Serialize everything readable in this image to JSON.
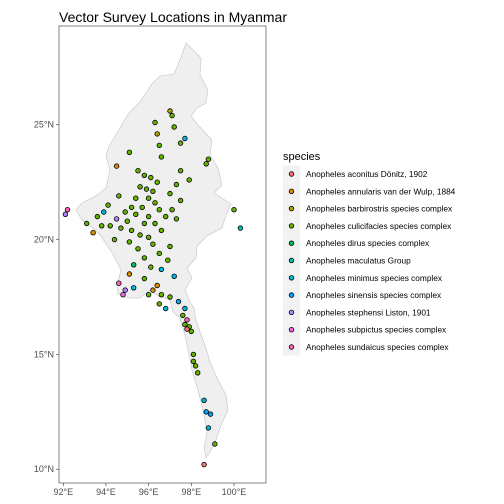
{
  "chart_data": {
    "type": "scatter",
    "title": "Vector Survey Locations in Myanmar",
    "x_ticks": [
      "92°E",
      "94°E",
      "96°E",
      "98°E",
      "100°E"
    ],
    "x_tick_values": [
      92,
      94,
      96,
      98,
      100
    ],
    "y_ticks": [
      "10°N",
      "15°N",
      "20°N",
      "25°N"
    ],
    "y_tick_values": [
      10,
      15,
      20,
      25
    ],
    "xlim": [
      91.8,
      101.5
    ],
    "ylim": [
      9.4,
      29.3
    ],
    "grid": false,
    "legend_placement": "right",
    "legend": {
      "title": "species",
      "entries": [
        {
          "label": "Anopheles aconitus Dönitz, 1902",
          "color": "#F8766D"
        },
        {
          "label": "Anopheles annularis van der Wulp, 1884",
          "color": "#DB8E00"
        },
        {
          "label": "Anopheles barbirostris species complex",
          "color": "#AEA200"
        },
        {
          "label": "Anopheles culicifacies species complex",
          "color": "#64B200"
        },
        {
          "label": "Anopheles dirus species complex",
          "color": "#00BD5C"
        },
        {
          "label": "Anopheles maculatus Group",
          "color": "#00C1A7"
        },
        {
          "label": "Anopheles minimus species complex",
          "color": "#00BADE"
        },
        {
          "label": "Anopheles sinensis species complex",
          "color": "#00A6FF"
        },
        {
          "label": "Anopheles stephensi Liston, 1901",
          "color": "#B385FF"
        },
        {
          "label": "Anopheles subpictus species complex",
          "color": "#EF67EB"
        },
        {
          "label": "Anopheles sundaicus species complex",
          "color": "#FF63B6"
        }
      ]
    },
    "points": [
      {
        "lon": 97.0,
        "lat": 25.6,
        "s": 2
      },
      {
        "lon": 97.1,
        "lat": 25.4,
        "s": 3
      },
      {
        "lon": 96.3,
        "lat": 25.1,
        "s": 3
      },
      {
        "lon": 97.2,
        "lat": 24.9,
        "s": 3
      },
      {
        "lon": 96.4,
        "lat": 24.6,
        "s": 2
      },
      {
        "lon": 97.7,
        "lat": 24.4,
        "s": 6
      },
      {
        "lon": 97.5,
        "lat": 24.2,
        "s": 3
      },
      {
        "lon": 96.5,
        "lat": 24.1,
        "s": 3
      },
      {
        "lon": 95.1,
        "lat": 23.8,
        "s": 3
      },
      {
        "lon": 96.6,
        "lat": 23.6,
        "s": 3
      },
      {
        "lon": 94.5,
        "lat": 23.2,
        "s": 1
      },
      {
        "lon": 98.8,
        "lat": 23.5,
        "s": 3
      },
      {
        "lon": 98.7,
        "lat": 23.3,
        "s": 3
      },
      {
        "lon": 95.5,
        "lat": 23.0,
        "s": 3
      },
      {
        "lon": 97.5,
        "lat": 23.0,
        "s": 3
      },
      {
        "lon": 95.8,
        "lat": 22.8,
        "s": 3
      },
      {
        "lon": 96.1,
        "lat": 22.7,
        "s": 3
      },
      {
        "lon": 97.9,
        "lat": 22.6,
        "s": 3
      },
      {
        "lon": 96.4,
        "lat": 22.5,
        "s": 3
      },
      {
        "lon": 97.3,
        "lat": 22.4,
        "s": 3
      },
      {
        "lon": 95.6,
        "lat": 22.3,
        "s": 3
      },
      {
        "lon": 95.9,
        "lat": 22.2,
        "s": 3
      },
      {
        "lon": 96.2,
        "lat": 22.1,
        "s": 3
      },
      {
        "lon": 97.0,
        "lat": 22.0,
        "s": 3
      },
      {
        "lon": 94.6,
        "lat": 21.9,
        "s": 3
      },
      {
        "lon": 95.4,
        "lat": 21.8,
        "s": 3
      },
      {
        "lon": 96.0,
        "lat": 21.8,
        "s": 3
      },
      {
        "lon": 96.3,
        "lat": 21.6,
        "s": 3
      },
      {
        "lon": 97.5,
        "lat": 21.7,
        "s": 3
      },
      {
        "lon": 94.1,
        "lat": 21.5,
        "s": 3
      },
      {
        "lon": 95.2,
        "lat": 21.4,
        "s": 3
      },
      {
        "lon": 95.7,
        "lat": 21.4,
        "s": 3
      },
      {
        "lon": 96.5,
        "lat": 21.3,
        "s": 3
      },
      {
        "lon": 97.1,
        "lat": 21.3,
        "s": 3
      },
      {
        "lon": 93.9,
        "lat": 21.2,
        "s": 6
      },
      {
        "lon": 94.9,
        "lat": 21.2,
        "s": 3
      },
      {
        "lon": 95.4,
        "lat": 21.1,
        "s": 3
      },
      {
        "lon": 96.0,
        "lat": 21.0,
        "s": 3
      },
      {
        "lon": 96.8,
        "lat": 21.0,
        "s": 3
      },
      {
        "lon": 97.3,
        "lat": 20.9,
        "s": 3
      },
      {
        "lon": 94.5,
        "lat": 20.9,
        "s": 8
      },
      {
        "lon": 95.0,
        "lat": 20.8,
        "s": 3
      },
      {
        "lon": 95.8,
        "lat": 20.7,
        "s": 3
      },
      {
        "lon": 96.3,
        "lat": 20.7,
        "s": 3
      },
      {
        "lon": 94.2,
        "lat": 20.6,
        "s": 3
      },
      {
        "lon": 94.7,
        "lat": 20.5,
        "s": 3
      },
      {
        "lon": 95.2,
        "lat": 20.4,
        "s": 3
      },
      {
        "lon": 96.6,
        "lat": 20.4,
        "s": 3
      },
      {
        "lon": 95.6,
        "lat": 20.2,
        "s": 3
      },
      {
        "lon": 96.0,
        "lat": 20.1,
        "s": 3
      },
      {
        "lon": 94.4,
        "lat": 20.0,
        "s": 3
      },
      {
        "lon": 95.1,
        "lat": 19.9,
        "s": 3
      },
      {
        "lon": 96.2,
        "lat": 19.8,
        "s": 3
      },
      {
        "lon": 97.0,
        "lat": 19.7,
        "s": 3
      },
      {
        "lon": 95.5,
        "lat": 19.6,
        "s": 3
      },
      {
        "lon": 96.5,
        "lat": 19.4,
        "s": 3
      },
      {
        "lon": 95.8,
        "lat": 19.2,
        "s": 3
      },
      {
        "lon": 96.9,
        "lat": 19.1,
        "s": 3
      },
      {
        "lon": 95.3,
        "lat": 18.9,
        "s": 4
      },
      {
        "lon": 96.1,
        "lat": 18.8,
        "s": 3
      },
      {
        "lon": 96.6,
        "lat": 18.7,
        "s": 6
      },
      {
        "lon": 97.2,
        "lat": 18.4,
        "s": 6
      },
      {
        "lon": 95.8,
        "lat": 18.3,
        "s": 3
      },
      {
        "lon": 96.4,
        "lat": 18.0,
        "s": 1
      },
      {
        "lon": 96.2,
        "lat": 17.8,
        "s": 1
      },
      {
        "lon": 96.0,
        "lat": 17.6,
        "s": 3
      },
      {
        "lon": 96.6,
        "lat": 17.6,
        "s": 3
      },
      {
        "lon": 97.0,
        "lat": 17.5,
        "s": 3
      },
      {
        "lon": 97.4,
        "lat": 17.3,
        "s": 7
      },
      {
        "lon": 96.5,
        "lat": 17.2,
        "s": 3
      },
      {
        "lon": 96.8,
        "lat": 17.0,
        "s": 6
      },
      {
        "lon": 97.7,
        "lat": 17.0,
        "s": 6
      },
      {
        "lon": 97.6,
        "lat": 16.7,
        "s": 3
      },
      {
        "lon": 97.8,
        "lat": 16.5,
        "s": 10
      },
      {
        "lon": 97.7,
        "lat": 16.3,
        "s": 3
      },
      {
        "lon": 97.9,
        "lat": 16.2,
        "s": 3
      },
      {
        "lon": 98.0,
        "lat": 16.0,
        "s": 3
      },
      {
        "lon": 97.8,
        "lat": 16.1,
        "s": 0
      },
      {
        "lon": 98.1,
        "lat": 15.0,
        "s": 3
      },
      {
        "lon": 98.1,
        "lat": 14.7,
        "s": 3
      },
      {
        "lon": 98.2,
        "lat": 14.5,
        "s": 3
      },
      {
        "lon": 98.3,
        "lat": 14.2,
        "s": 3
      },
      {
        "lon": 98.6,
        "lat": 13.0,
        "s": 6
      },
      {
        "lon": 98.7,
        "lat": 12.5,
        "s": 7
      },
      {
        "lon": 98.9,
        "lat": 12.4,
        "s": 7
      },
      {
        "lon": 98.8,
        "lat": 11.8,
        "s": 6
      },
      {
        "lon": 99.1,
        "lat": 11.1,
        "s": 3
      },
      {
        "lon": 98.6,
        "lat": 10.2,
        "s": 0
      },
      {
        "lon": 92.2,
        "lat": 21.3,
        "s": 10
      },
      {
        "lon": 92.1,
        "lat": 21.1,
        "s": 8
      },
      {
        "lon": 93.1,
        "lat": 20.7,
        "s": 3
      },
      {
        "lon": 93.4,
        "lat": 20.3,
        "s": 1
      },
      {
        "lon": 93.6,
        "lat": 21.0,
        "s": 3
      },
      {
        "lon": 93.8,
        "lat": 20.6,
        "s": 3
      },
      {
        "lon": 94.6,
        "lat": 18.1,
        "s": 10
      },
      {
        "lon": 94.9,
        "lat": 17.8,
        "s": 8
      },
      {
        "lon": 94.8,
        "lat": 17.6,
        "s": 9
      },
      {
        "lon": 95.3,
        "lat": 17.9,
        "s": 6
      },
      {
        "lon": 95.1,
        "lat": 18.5,
        "s": 1
      },
      {
        "lon": 100.0,
        "lat": 21.3,
        "s": 3
      },
      {
        "lon": 100.3,
        "lat": 20.5,
        "s": 5
      }
    ]
  }
}
